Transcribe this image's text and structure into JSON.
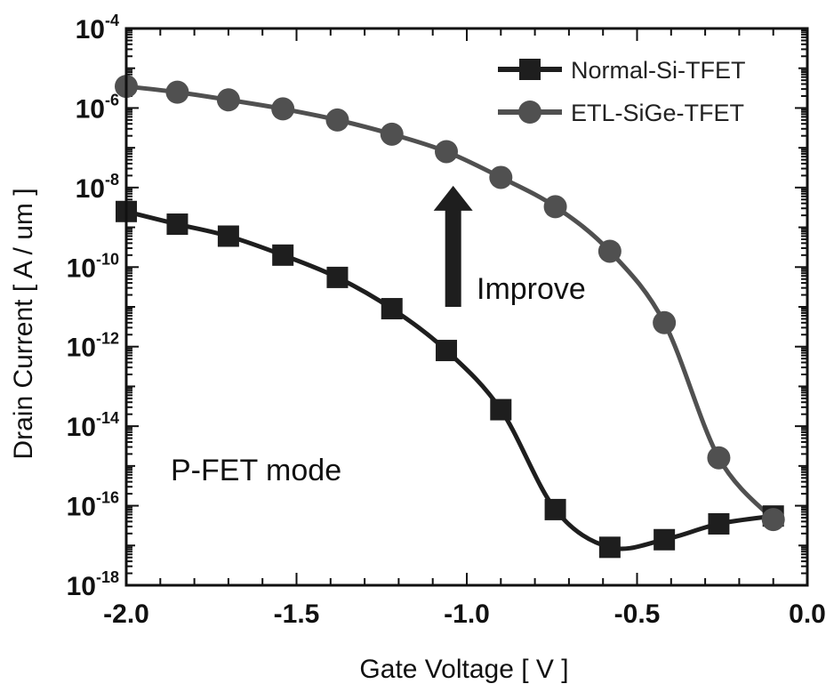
{
  "chart_data": {
    "type": "line",
    "xlabel": "Gate Voltage [ V ]",
    "ylabel": "Drain Current [ A / um ]",
    "y_scale": "log",
    "xlim": [
      -2.0,
      0.0
    ],
    "ylim": [
      1e-18,
      0.0001
    ],
    "x_ticks": [
      {
        "value": -2.0,
        "label": "-2.0"
      },
      {
        "value": -1.5,
        "label": "-1.5"
      },
      {
        "value": -1.0,
        "label": "-1.0"
      },
      {
        "value": -0.5,
        "label": "-0.5"
      },
      {
        "value": 0.0,
        "label": "0.0"
      }
    ],
    "y_ticks": [
      {
        "value": -4,
        "base": "10",
        "exp": "-4"
      },
      {
        "value": -6,
        "base": "10",
        "exp": "-6"
      },
      {
        "value": -8,
        "base": "10",
        "exp": "-8"
      },
      {
        "value": -10,
        "base": "10",
        "exp": "-10"
      },
      {
        "value": -12,
        "base": "10",
        "exp": "-12"
      },
      {
        "value": -14,
        "base": "10",
        "exp": "-14"
      },
      {
        "value": -16,
        "base": "10",
        "exp": "-16"
      },
      {
        "value": -18,
        "base": "10",
        "exp": "-18"
      }
    ],
    "legend_position": "top-right",
    "series": [
      {
        "name": "Normal-Si-TFET",
        "marker": "square",
        "color": "#1e1e1e",
        "x": [
          -2.0,
          -1.85,
          -1.7,
          -1.54,
          -1.38,
          -1.22,
          -1.06,
          -0.9,
          -0.74,
          -0.58,
          -0.42,
          -0.26,
          -0.1
        ],
        "y": [
          2.5e-09,
          1.2e-09,
          6e-10,
          2e-10,
          5.5e-11,
          9e-12,
          8e-13,
          2.6e-14,
          8e-17,
          9e-18,
          1.4e-17,
          3.5e-17,
          5.5e-17
        ]
      },
      {
        "name": "ETL-SiGe-TFET",
        "marker": "circle",
        "color": "#505050",
        "x": [
          -2.0,
          -1.85,
          -1.7,
          -1.54,
          -1.38,
          -1.22,
          -1.06,
          -0.9,
          -0.74,
          -0.58,
          -0.42,
          -0.26,
          -0.1
        ],
        "y": [
          3.5e-06,
          2.5e-06,
          1.6e-06,
          9.5e-07,
          5e-07,
          2.2e-07,
          8e-08,
          1.8e-08,
          3.3e-09,
          2.5e-10,
          4e-12,
          1.6e-15,
          4.5e-17
        ]
      }
    ],
    "annotations": [
      {
        "text": "Improve",
        "kind": "arrow-up",
        "x": -1.04,
        "y_from": 1e-11,
        "y_to": 1e-08
      },
      {
        "text": "P-FET mode",
        "kind": "label",
        "x": -1.8,
        "y": 1e-15
      }
    ]
  }
}
